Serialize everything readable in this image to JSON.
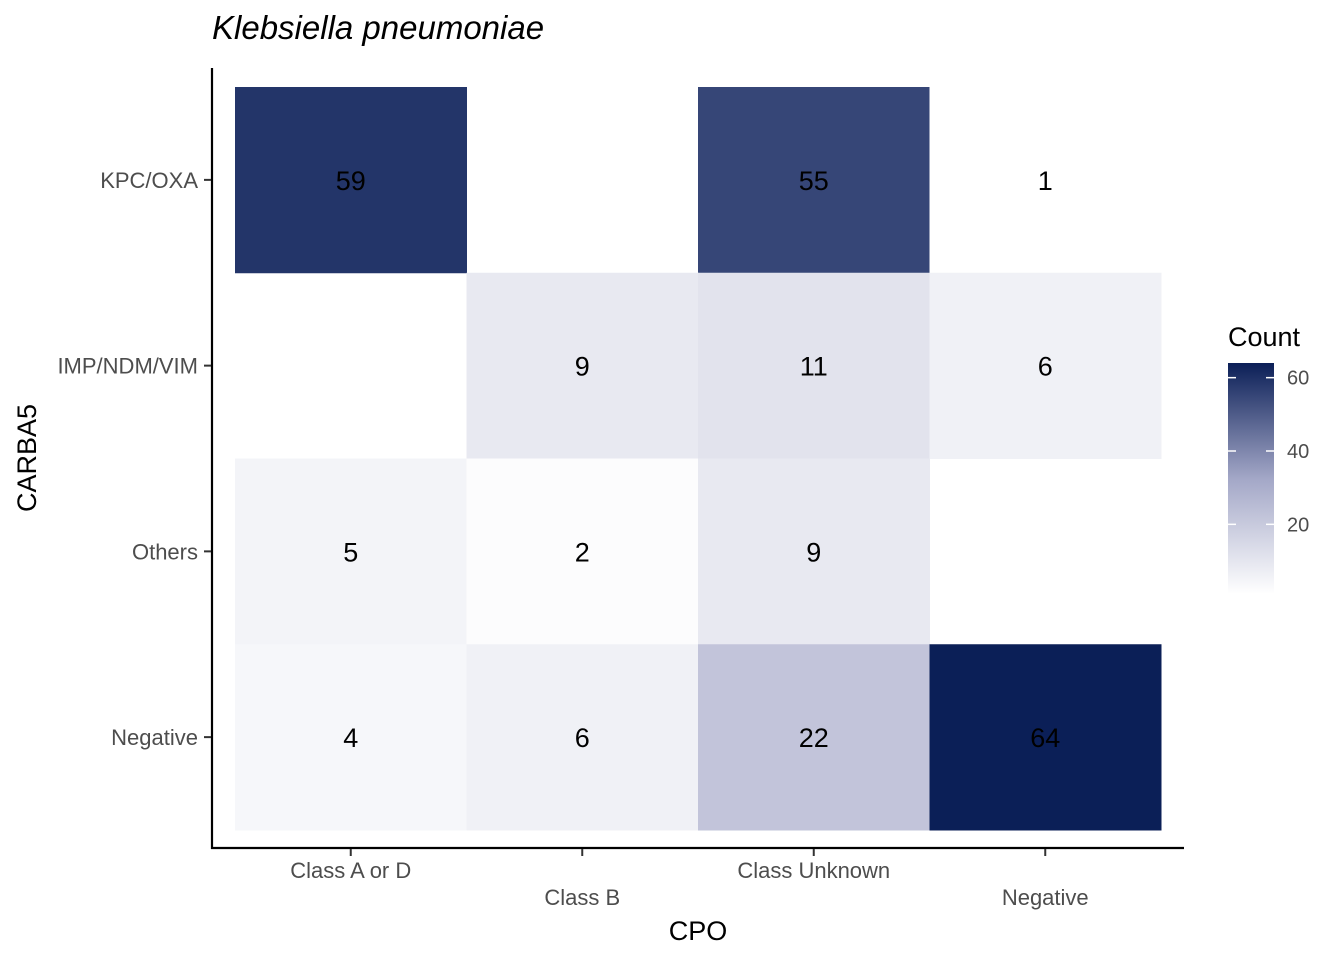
{
  "chart_data": {
    "type": "heatmap",
    "title": "Klebsiella pneumoniae",
    "xlabel": "CPO",
    "ylabel": "CARBA5",
    "x_categories": [
      "Class A or D",
      "Class B",
      "Class Unknown",
      "Negative"
    ],
    "y_categories": [
      "KPC/OXA",
      "IMP/NDM/VIM",
      "Others",
      "Negative"
    ],
    "cells": [
      {
        "x": "Class A or D",
        "y": "KPC/OXA",
        "value": 59
      },
      {
        "x": "Class Unknown",
        "y": "KPC/OXA",
        "value": 55
      },
      {
        "x": "Negative",
        "y": "KPC/OXA",
        "value": 1
      },
      {
        "x": "Class B",
        "y": "IMP/NDM/VIM",
        "value": 9
      },
      {
        "x": "Class Unknown",
        "y": "IMP/NDM/VIM",
        "value": 11
      },
      {
        "x": "Negative",
        "y": "IMP/NDM/VIM",
        "value": 6
      },
      {
        "x": "Class A or D",
        "y": "Others",
        "value": 5
      },
      {
        "x": "Class B",
        "y": "Others",
        "value": 2
      },
      {
        "x": "Class Unknown",
        "y": "Others",
        "value": 9
      },
      {
        "x": "Class A or D",
        "y": "Negative",
        "value": 4
      },
      {
        "x": "Class B",
        "y": "Negative",
        "value": 6
      },
      {
        "x": "Class Unknown",
        "y": "Negative",
        "value": 22
      },
      {
        "x": "Negative",
        "y": "Negative",
        "value": 64
      }
    ],
    "legend": {
      "title": "Count",
      "ticks": [
        20,
        40,
        60
      ],
      "range": [
        1,
        64
      ],
      "color_low": "#ffffff",
      "color_high": "#0b1f57",
      "placement": "right"
    },
    "grid": false
  }
}
